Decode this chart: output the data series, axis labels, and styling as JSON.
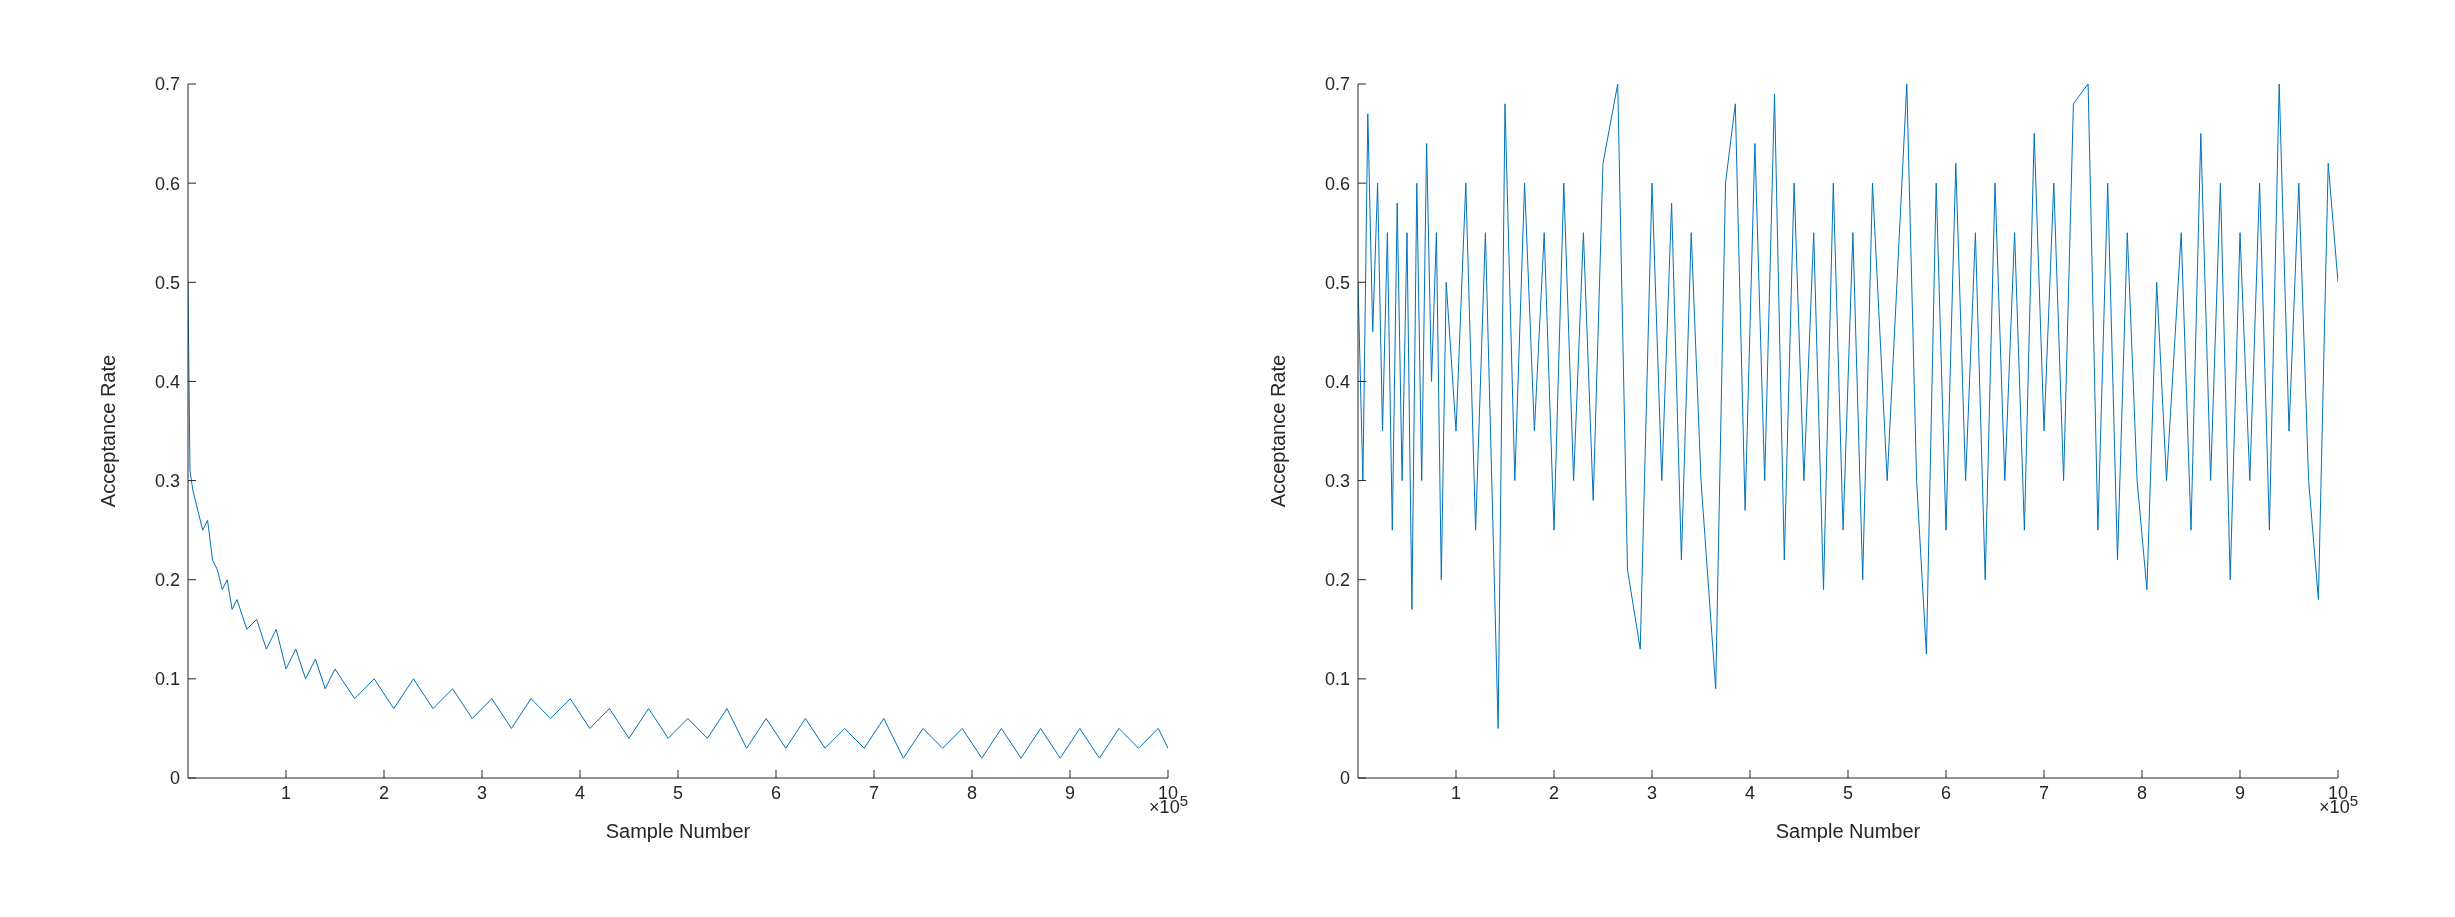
{
  "chart_data": [
    {
      "type": "line",
      "xlabel": "Sample Number",
      "ylabel": "Acceptance Rate",
      "xlim": [
        0,
        10
      ],
      "ylim": [
        0,
        0.7
      ],
      "xticks": [
        1,
        2,
        3,
        4,
        5,
        6,
        7,
        8,
        9,
        10
      ],
      "yticks": [
        0,
        0.1,
        0.2,
        0.3,
        0.4,
        0.5,
        0.6,
        0.7
      ],
      "grid": false,
      "legend": false,
      "marker": "none",
      "line_style": "solid",
      "annotations": [
        "×10$^{5}$"
      ],
      "series": [
        {
          "color": "#0072bd",
          "x": [
            0,
            0.02,
            0.05,
            0.1,
            0.15,
            0.2,
            0.25,
            0.3,
            0.35,
            0.4,
            0.45,
            0.5,
            0.6,
            0.7,
            0.8,
            0.9,
            1.0,
            1.1,
            1.2,
            1.3,
            1.4,
            1.5,
            1.7,
            1.9,
            2.1,
            2.3,
            2.5,
            2.7,
            2.9,
            3.1,
            3.3,
            3.5,
            3.7,
            3.9,
            4.1,
            4.3,
            4.5,
            4.7,
            4.9,
            5.1,
            5.3,
            5.5,
            5.7,
            5.9,
            6.1,
            6.3,
            6.5,
            6.7,
            6.9,
            7.1,
            7.3,
            7.5,
            7.7,
            7.9,
            8.1,
            8.3,
            8.5,
            8.7,
            8.9,
            9.1,
            9.3,
            9.5,
            9.7,
            9.9,
            10
          ],
          "values": [
            0.5,
            0.31,
            0.29,
            0.27,
            0.25,
            0.26,
            0.22,
            0.21,
            0.19,
            0.2,
            0.17,
            0.18,
            0.15,
            0.16,
            0.13,
            0.15,
            0.11,
            0.13,
            0.1,
            0.12,
            0.09,
            0.11,
            0.08,
            0.1,
            0.07,
            0.1,
            0.07,
            0.09,
            0.06,
            0.08,
            0.05,
            0.08,
            0.06,
            0.08,
            0.05,
            0.07,
            0.04,
            0.07,
            0.04,
            0.06,
            0.04,
            0.07,
            0.03,
            0.06,
            0.03,
            0.06,
            0.03,
            0.05,
            0.03,
            0.06,
            0.02,
            0.05,
            0.03,
            0.05,
            0.02,
            0.05,
            0.02,
            0.05,
            0.02,
            0.05,
            0.02,
            0.05,
            0.03,
            0.05,
            0.03
          ]
        }
      ]
    },
    {
      "type": "line",
      "xlabel": "Sample Number",
      "ylabel": "Acceptance Rate",
      "xlim": [
        0,
        10
      ],
      "ylim": [
        0,
        0.7
      ],
      "xticks": [
        1,
        2,
        3,
        4,
        5,
        6,
        7,
        8,
        9,
        10
      ],
      "yticks": [
        0,
        0.1,
        0.2,
        0.3,
        0.4,
        0.5,
        0.6,
        0.7
      ],
      "grid": false,
      "legend": false,
      "marker": "none",
      "line_style": "solid",
      "annotations": [
        "×10$^{5}$"
      ],
      "series": [
        {
          "color": "#0072bd",
          "x": [
            0,
            0.05,
            0.1,
            0.15,
            0.2,
            0.25,
            0.3,
            0.35,
            0.4,
            0.45,
            0.5,
            0.55,
            0.6,
            0.65,
            0.7,
            0.75,
            0.8,
            0.85,
            0.9,
            1.0,
            1.1,
            1.2,
            1.3,
            1.43,
            1.5,
            1.6,
            1.7,
            1.8,
            1.9,
            2.0,
            2.1,
            2.2,
            2.3,
            2.4,
            2.5,
            2.65,
            2.75,
            2.88,
            3.0,
            3.1,
            3.2,
            3.3,
            3.4,
            3.5,
            3.65,
            3.75,
            3.85,
            3.95,
            4.05,
            4.15,
            4.25,
            4.35,
            4.45,
            4.55,
            4.65,
            4.75,
            4.85,
            4.95,
            5.05,
            5.15,
            5.25,
            5.4,
            5.5,
            5.6,
            5.7,
            5.8,
            5.9,
            6.0,
            6.1,
            6.2,
            6.3,
            6.4,
            6.5,
            6.6,
            6.7,
            6.8,
            6.9,
            7.0,
            7.1,
            7.2,
            7.3,
            7.45,
            7.55,
            7.65,
            7.75,
            7.85,
            7.95,
            8.05,
            8.15,
            8.25,
            8.4,
            8.5,
            8.6,
            8.7,
            8.8,
            8.9,
            9.0,
            9.1,
            9.2,
            9.3,
            9.4,
            9.5,
            9.6,
            9.7,
            9.8,
            9.9,
            10
          ],
          "values": [
            0.5,
            0.3,
            0.67,
            0.45,
            0.6,
            0.35,
            0.55,
            0.25,
            0.58,
            0.3,
            0.55,
            0.17,
            0.6,
            0.3,
            0.64,
            0.4,
            0.55,
            0.2,
            0.5,
            0.35,
            0.6,
            0.25,
            0.55,
            0.05,
            0.68,
            0.3,
            0.6,
            0.35,
            0.55,
            0.25,
            0.6,
            0.3,
            0.55,
            0.28,
            0.62,
            0.7,
            0.21,
            0.13,
            0.6,
            0.3,
            0.58,
            0.22,
            0.55,
            0.3,
            0.09,
            0.6,
            0.68,
            0.27,
            0.64,
            0.3,
            0.69,
            0.22,
            0.6,
            0.3,
            0.55,
            0.19,
            0.6,
            0.25,
            0.55,
            0.2,
            0.6,
            0.3,
            0.5,
            0.7,
            0.3,
            0.125,
            0.6,
            0.25,
            0.62,
            0.3,
            0.55,
            0.2,
            0.6,
            0.3,
            0.55,
            0.25,
            0.65,
            0.35,
            0.6,
            0.3,
            0.68,
            0.7,
            0.25,
            0.6,
            0.22,
            0.55,
            0.3,
            0.19,
            0.5,
            0.3,
            0.55,
            0.25,
            0.65,
            0.3,
            0.6,
            0.2,
            0.55,
            0.3,
            0.6,
            0.25,
            0.7,
            0.35,
            0.6,
            0.3,
            0.18,
            0.62,
            0.5
          ]
        }
      ]
    }
  ]
}
